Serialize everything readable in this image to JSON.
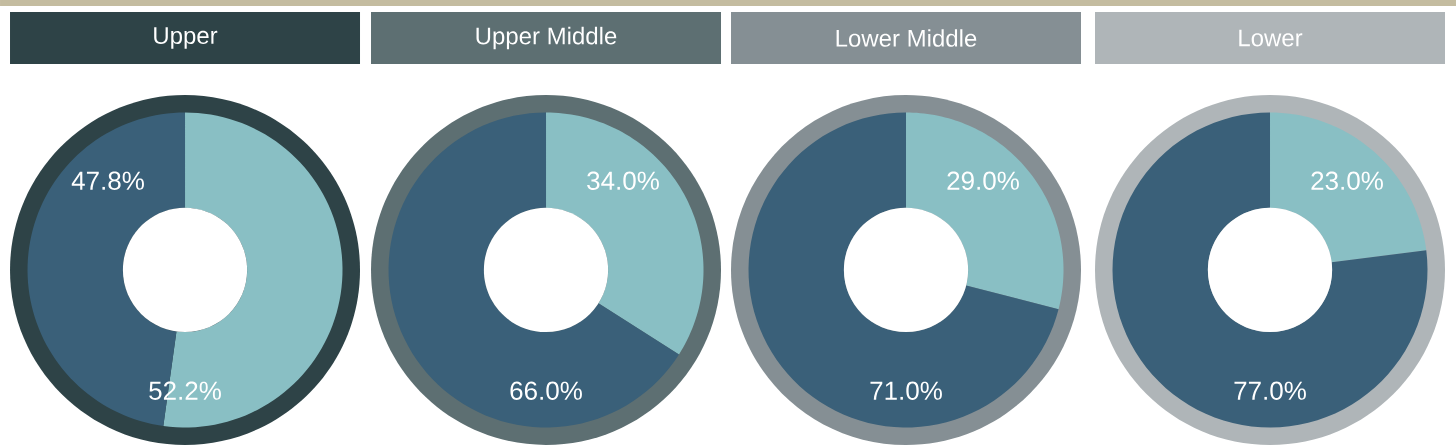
{
  "chart_data": [
    {
      "type": "donut",
      "title": "Upper",
      "categories": [
        null,
        null
      ],
      "values": [
        52.2,
        47.8
      ],
      "colors": [
        "#89bfc4",
        "#3a6079"
      ],
      "value_labels": [
        "52.2%",
        "47.8%"
      ]
    },
    {
      "type": "donut",
      "title": "Upper Middle",
      "categories": [
        null,
        null
      ],
      "values": [
        34.0,
        66.0
      ],
      "colors": [
        "#89bfc4",
        "#3a6079"
      ],
      "value_labels": [
        "34.0%",
        "66.0%"
      ]
    },
    {
      "type": "donut",
      "title": "Lower Middle",
      "categories": [
        null,
        null
      ],
      "values": [
        29.0,
        71.0
      ],
      "colors": [
        "#89bfc4",
        "#3a6079"
      ],
      "value_labels": [
        "29.0%",
        "71.0%"
      ]
    },
    {
      "type": "donut",
      "title": "Lower",
      "categories": [
        null,
        null
      ],
      "values": [
        23.0,
        77.0
      ],
      "colors": [
        "#89bfc4",
        "#3a6079"
      ],
      "value_labels": [
        "23.0%",
        "77.0%"
      ]
    }
  ]
}
